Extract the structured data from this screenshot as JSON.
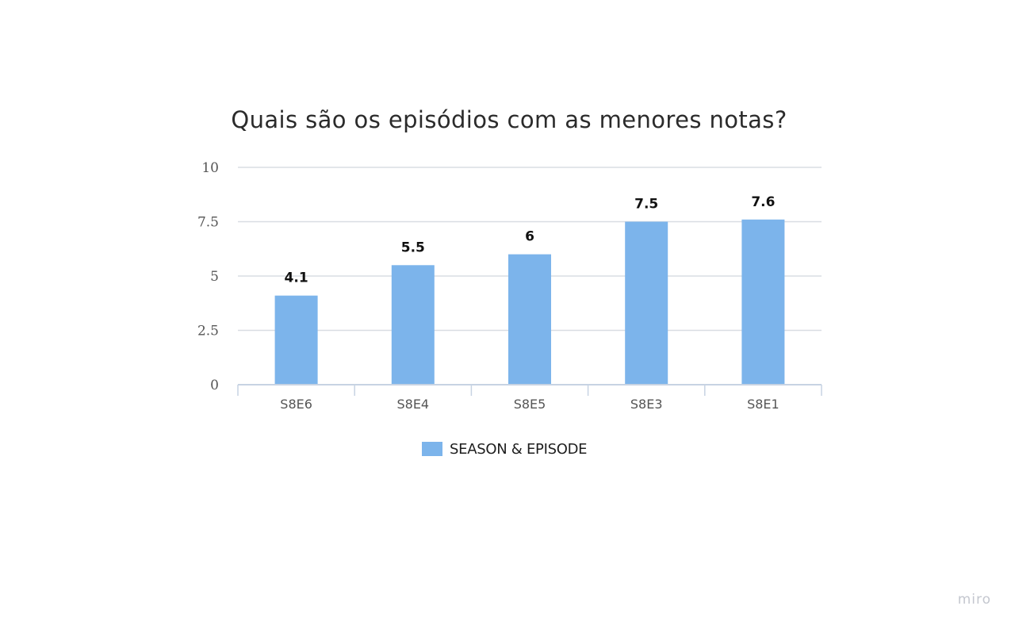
{
  "chart_data": {
    "type": "bar",
    "title": "Quais são os episódios com as menores notas?",
    "categories": [
      "S8E6",
      "S8E4",
      "S8E5",
      "S8E3",
      "S8E1"
    ],
    "series": [
      {
        "name": "SEASON & EPISODE",
        "values": [
          4.1,
          5.5,
          6,
          7.5,
          7.6
        ],
        "color": "#7cb4eb"
      }
    ],
    "data_labels": [
      "4.1",
      "5.5",
      "6",
      "7.5",
      "7.6"
    ],
    "y_ticks": [
      0,
      2.5,
      5,
      7.5,
      10
    ],
    "y_tick_labels": [
      "0",
      "2.5",
      "5",
      "7.5",
      "10"
    ],
    "ylim": [
      0,
      10
    ],
    "grid": true,
    "legend_position": "bottom-center",
    "colors": {
      "gridline": "#d9dde3",
      "axis": "#c7d3e3",
      "tick_text": "#555555",
      "label_text": "#111111"
    }
  },
  "watermark": "miro"
}
